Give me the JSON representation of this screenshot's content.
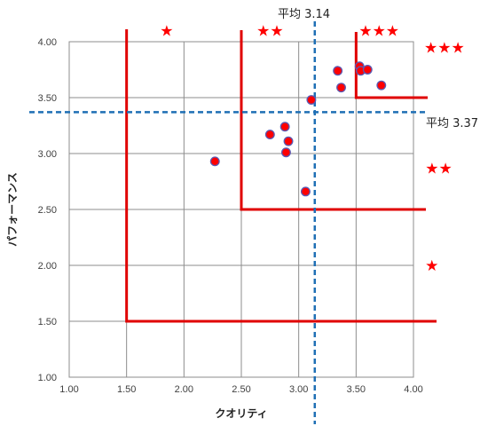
{
  "chart_data": {
    "type": "scatter",
    "title": "",
    "xlabel": "クオリティ",
    "ylabel": "パフォーマンス",
    "xlim": [
      1.0,
      4.0
    ],
    "ylim": [
      1.0,
      4.0
    ],
    "x_ticks": [
      "1.00",
      "1.50",
      "2.00",
      "2.50",
      "3.00",
      "3.50",
      "4.00"
    ],
    "y_ticks": [
      "1.00",
      "1.50",
      "2.00",
      "2.50",
      "3.00",
      "3.50",
      "4.00"
    ],
    "grid": true,
    "series": [
      {
        "points": [
          {
            "x": 2.27,
            "y": 2.93
          },
          {
            "x": 2.75,
            "y": 3.17
          },
          {
            "x": 2.88,
            "y": 3.24
          },
          {
            "x": 2.91,
            "y": 3.11
          },
          {
            "x": 2.89,
            "y": 3.01
          },
          {
            "x": 3.06,
            "y": 2.66
          },
          {
            "x": 3.11,
            "y": 3.48
          },
          {
            "x": 3.34,
            "y": 3.74
          },
          {
            "x": 3.37,
            "y": 3.59
          },
          {
            "x": 3.53,
            "y": 3.78
          },
          {
            "x": 3.54,
            "y": 3.74
          },
          {
            "x": 3.6,
            "y": 3.75
          },
          {
            "x": 3.72,
            "y": 3.61
          }
        ],
        "color": "#ff0000",
        "edge_color": "#5a5ab4"
      }
    ],
    "mean_lines": {
      "x": {
        "value": 3.14,
        "label": "平均 3.14",
        "color": "#1f6fb5"
      },
      "y": {
        "value": 3.37,
        "label": "平均 3.37",
        "color": "#1f6fb5"
      }
    },
    "zones": [
      {
        "corner": [
          1.5,
          1.5
        ],
        "stars": "★",
        "color": "#e00000"
      },
      {
        "corner": [
          2.5,
          2.5
        ],
        "stars": "★★",
        "color": "#e00000"
      },
      {
        "corner": [
          3.5,
          3.5
        ],
        "stars": "★★★",
        "color": "#e00000"
      }
    ],
    "star_annotations": [
      {
        "text": "★",
        "x": 1.85,
        "y": 4.1
      },
      {
        "text": "★★",
        "x": 2.75,
        "y": 4.1
      },
      {
        "text": "★★★",
        "x": 3.7,
        "y": 4.1
      },
      {
        "text": "★★★",
        "x": 4.27,
        "y": 3.95
      },
      {
        "text": "★★",
        "x": 4.22,
        "y": 2.87
      },
      {
        "text": "★",
        "x": 4.16,
        "y": 2.0
      }
    ]
  }
}
